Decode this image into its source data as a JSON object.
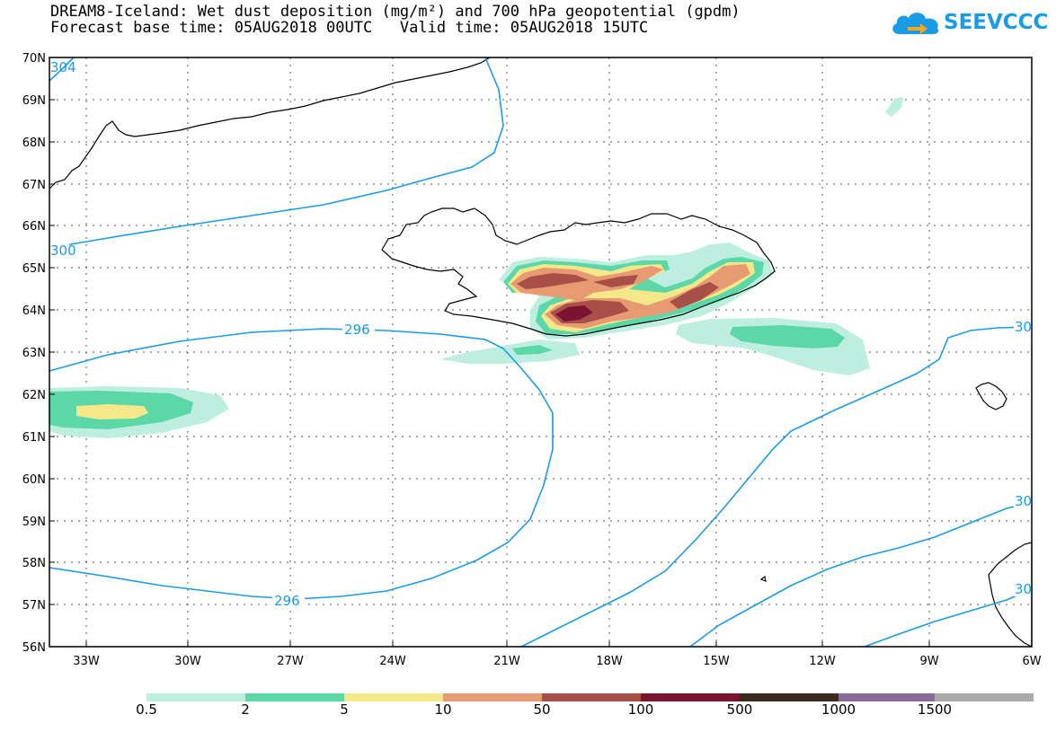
{
  "title": {
    "line1": "DREAM8-Iceland: Wet dust deposition (mg/m²) and 700 hPa geopotential (gpdm)",
    "line2": "Forecast base time: 05AUG2018 00UTC   Valid time: 05AUG2018 15UTC"
  },
  "logo": {
    "text": "SEEVCCC",
    "icon": "cloud-arrow-icon",
    "color": "#1a9be6"
  },
  "map": {
    "lon_range": [
      -34.5,
      -6
    ],
    "lat_range": [
      56,
      70
    ],
    "lat_labels": [
      "70N",
      "69N",
      "68N",
      "67N",
      "66N",
      "65N",
      "64N",
      "63N",
      "62N",
      "61N",
      "60N",
      "59N",
      "58N",
      "57N",
      "56N"
    ],
    "lon_labels": [
      "33W",
      "30W",
      "27W",
      "24W",
      "21W",
      "18W",
      "15W",
      "12W",
      "9W",
      "6W"
    ],
    "gridlines": "dotted",
    "coastline_color": "#000000",
    "contour_color": "#1a9be6",
    "contour_labels": [
      {
        "text": "296",
        "lon": -29.5,
        "lat": 63.4
      },
      {
        "text": "296",
        "lon": -28.6,
        "lat": 56.95
      },
      {
        "text": "304",
        "lon": -34.4,
        "lat": 69.8
      },
      {
        "text": "300",
        "lon": -34.4,
        "lat": 65.5
      },
      {
        "text": "30",
        "lon": -6.1,
        "lat": 63.6
      },
      {
        "text": "30",
        "lon": -6.1,
        "lat": 59.5
      },
      {
        "text": "30",
        "lon": -6.1,
        "lat": 57.3
      }
    ]
  },
  "colorbar": {
    "labels": [
      "0.5",
      "2",
      "5",
      "10",
      "50",
      "100",
      "500",
      "1000",
      "1500"
    ],
    "colors": [
      "#bdeee0",
      "#5cd8a8",
      "#f5e88a",
      "#e89a72",
      "#a85048",
      "#7a1430",
      "#3a2a20",
      "#8a6a9a",
      "#aaaaaa"
    ]
  }
}
